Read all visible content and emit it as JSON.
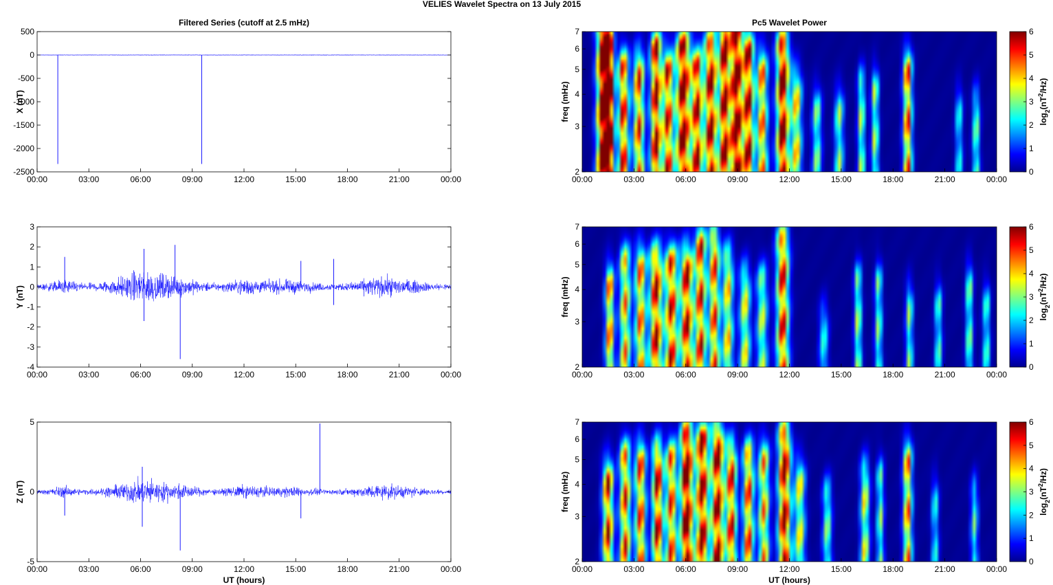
{
  "title_main": "VELIES Wavelet Spectra on 13 July      2015",
  "left_title": "Filtered Series (cutoff at 2.5 mHz)",
  "right_title": "Pc5 Wavelet Power",
  "xlabel": "UT (hours)",
  "time_ticks": [
    "00:00",
    "03:00",
    "06:00",
    "09:00",
    "12:00",
    "15:00",
    "18:00",
    "21:00",
    "00:00"
  ],
  "freq_label": "freq (mHz)",
  "freq_ticks": [
    2,
    3,
    4,
    5,
    6,
    7
  ],
  "colorbar_label": "log2(nT2/Hz)",
  "colorbar_ticks": [
    0,
    1,
    2,
    3,
    4,
    5,
    6
  ],
  "colors": {
    "trace": "#0000ff",
    "jet_low": "#00008f",
    "jet_high": "#800000"
  },
  "chart_data": [
    {
      "type": "line",
      "ylabel": "X (nT)",
      "ylim": [
        -2500,
        500
      ],
      "yticks": [
        500,
        0,
        -500,
        -1000,
        -1500,
        -2000,
        -2500
      ],
      "xlim_hours": [
        0,
        24
      ],
      "baseline": 0,
      "spikes": [
        {
          "t": 1.2,
          "value": -2330
        },
        {
          "t": 9.55,
          "value": -2330
        }
      ]
    },
    {
      "type": "line",
      "ylabel": "Y (nT)",
      "ylim": [
        -4,
        3
      ],
      "yticks": [
        3,
        2,
        1,
        0,
        -1,
        -2,
        -3,
        -4
      ],
      "xlim_hours": [
        0,
        24
      ],
      "spikes": [
        {
          "t": 1.6,
          "value": 1.5
        },
        {
          "t": 6.2,
          "value": 1.9
        },
        {
          "t": 6.2,
          "value": -1.7
        },
        {
          "t": 8.0,
          "value": 2.1
        },
        {
          "t": 8.3,
          "value": -3.6
        },
        {
          "t": 15.3,
          "value": 1.3
        },
        {
          "t": 17.2,
          "value": 1.4
        },
        {
          "t": 17.2,
          "value": -0.9
        }
      ]
    },
    {
      "type": "line",
      "ylabel": "Z (nT)",
      "ylim": [
        -5,
        5
      ],
      "yticks": [
        5,
        0,
        -5
      ],
      "xlim_hours": [
        0,
        24
      ],
      "spikes": [
        {
          "t": 1.6,
          "value": -1.7
        },
        {
          "t": 6.1,
          "value": 1.8
        },
        {
          "t": 6.1,
          "value": -2.5
        },
        {
          "t": 8.3,
          "value": -4.2
        },
        {
          "t": 16.4,
          "value": 4.9
        },
        {
          "t": 15.3,
          "value": -1.9
        }
      ]
    },
    {
      "type": "heatmap",
      "ylabel": "freq (mHz)",
      "ylim": [
        2,
        7
      ],
      "yscale": "log",
      "clim": [
        0,
        6
      ],
      "xlim_hours": [
        0,
        24
      ]
    },
    {
      "type": "heatmap",
      "ylabel": "freq (mHz)",
      "ylim": [
        2,
        7
      ],
      "yscale": "log",
      "clim": [
        0,
        6
      ],
      "xlim_hours": [
        0,
        24
      ]
    },
    {
      "type": "heatmap",
      "ylabel": "freq (mHz)",
      "ylim": [
        2,
        7
      ],
      "yscale": "log",
      "clim": [
        0,
        6
      ],
      "xlim_hours": [
        0,
        24
      ]
    }
  ]
}
